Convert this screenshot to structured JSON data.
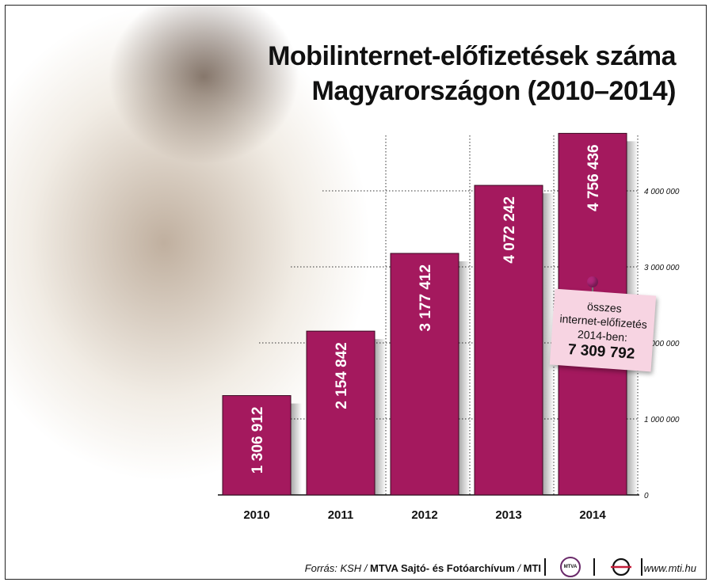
{
  "title_line1": "Mobilinternet-előfizetések száma",
  "title_line2": "Magyarországon (2010–2014)",
  "chart_data": {
    "type": "bar",
    "title": "Mobilinternet-előfizetések száma Magyarországon (2010–2014)",
    "categories": [
      "2010",
      "2011",
      "2012",
      "2013",
      "2014"
    ],
    "values": [
      1306912,
      2154842,
      3177412,
      4072242,
      4756436
    ],
    "value_labels": [
      "1 306 912",
      "2 154 842",
      "3 177 412",
      "4 072 242",
      "4 756 436"
    ],
    "ylim": [
      0,
      5000000
    ],
    "y_ticks": [
      0,
      1000000,
      2000000,
      3000000,
      4000000
    ],
    "y_tick_labels": [
      "0",
      "1 000 000",
      "2 000 000",
      "3 000 000",
      "4 000 000"
    ],
    "y_axis_side": "right",
    "grid": "dotted",
    "bar_color": "#a4195e"
  },
  "note": {
    "line1": "összes",
    "line2": "internet-előfizetés",
    "line3": "2014-ben:",
    "value": "7 309 792"
  },
  "footer": {
    "source_prefix": "Forrás: KSH / ",
    "source_bold": "MTVA Sajtó- és Fotóarchívum",
    "source_sep": " / ",
    "source_mti": "MTI",
    "mtva_logo_text": "MTVA",
    "website": "www.mti.hu"
  }
}
